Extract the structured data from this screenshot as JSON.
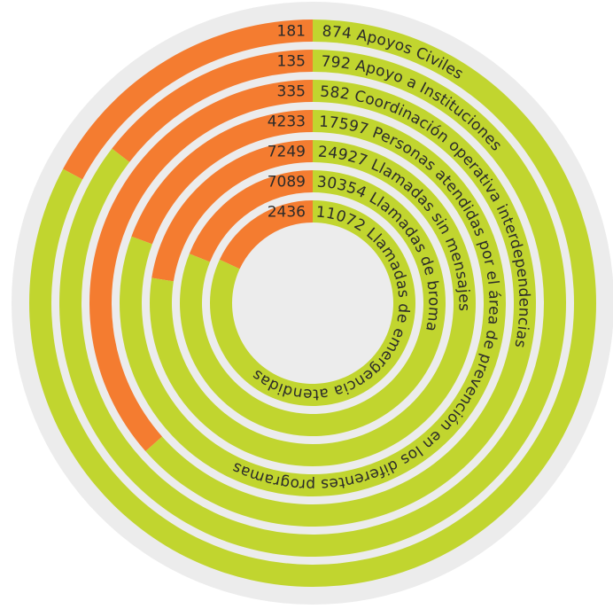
{
  "chart_data": {
    "type": "radial-bar",
    "colors": {
      "background_disc": "#ececec",
      "orange": "#f47c30",
      "green": "#c1d52f",
      "gap": "#ffffff"
    },
    "series": [
      {
        "name": "",
        "color": "orange",
        "values": [
          181,
          135,
          335,
          4233,
          7249,
          7089,
          2436
        ]
      },
      {
        "name": "",
        "color": "green",
        "values": [
          874,
          792,
          582,
          17597,
          24927,
          30354,
          11072
        ]
      }
    ],
    "rings": [
      {
        "orange_value": 181,
        "green_value": 874,
        "label": "Apoyos Civiles",
        "orange_text": "181",
        "green_text": "874 Apoyos Civiles"
      },
      {
        "orange_value": 135,
        "green_value": 792,
        "label": "Apoyo a Instituciones",
        "orange_text": "135",
        "green_text": "792 Apoyo a Instituciones"
      },
      {
        "orange_value": 335,
        "green_value": 582,
        "label": "Coordinación operativa interdependencias",
        "orange_text": "335",
        "green_text": "582 Coordinación operativa interdependencias"
      },
      {
        "orange_value": 4233,
        "green_value": 17597,
        "label": "Personas atendidas por el área de prevención en los diferentes programas",
        "orange_text": "4233",
        "green_text": "17597 Personas atendidas por el área de prevención en los diferentes programas"
      },
      {
        "orange_value": 7249,
        "green_value": 24927,
        "label": "Llamadas sin mensajes",
        "orange_text": "7249",
        "green_text": "24927 Llamadas sin mensajes"
      },
      {
        "orange_value": 7089,
        "green_value": 30354,
        "label": "Llamadas de broma",
        "orange_text": "7089",
        "green_text": "30354 Llamadas de broma"
      },
      {
        "orange_value": 2436,
        "green_value": 11072,
        "label": "Llamadas de emergencia atendidas",
        "orange_text": "2436",
        "green_text": "11072 Llamadas de emergencia atendidas"
      }
    ]
  }
}
